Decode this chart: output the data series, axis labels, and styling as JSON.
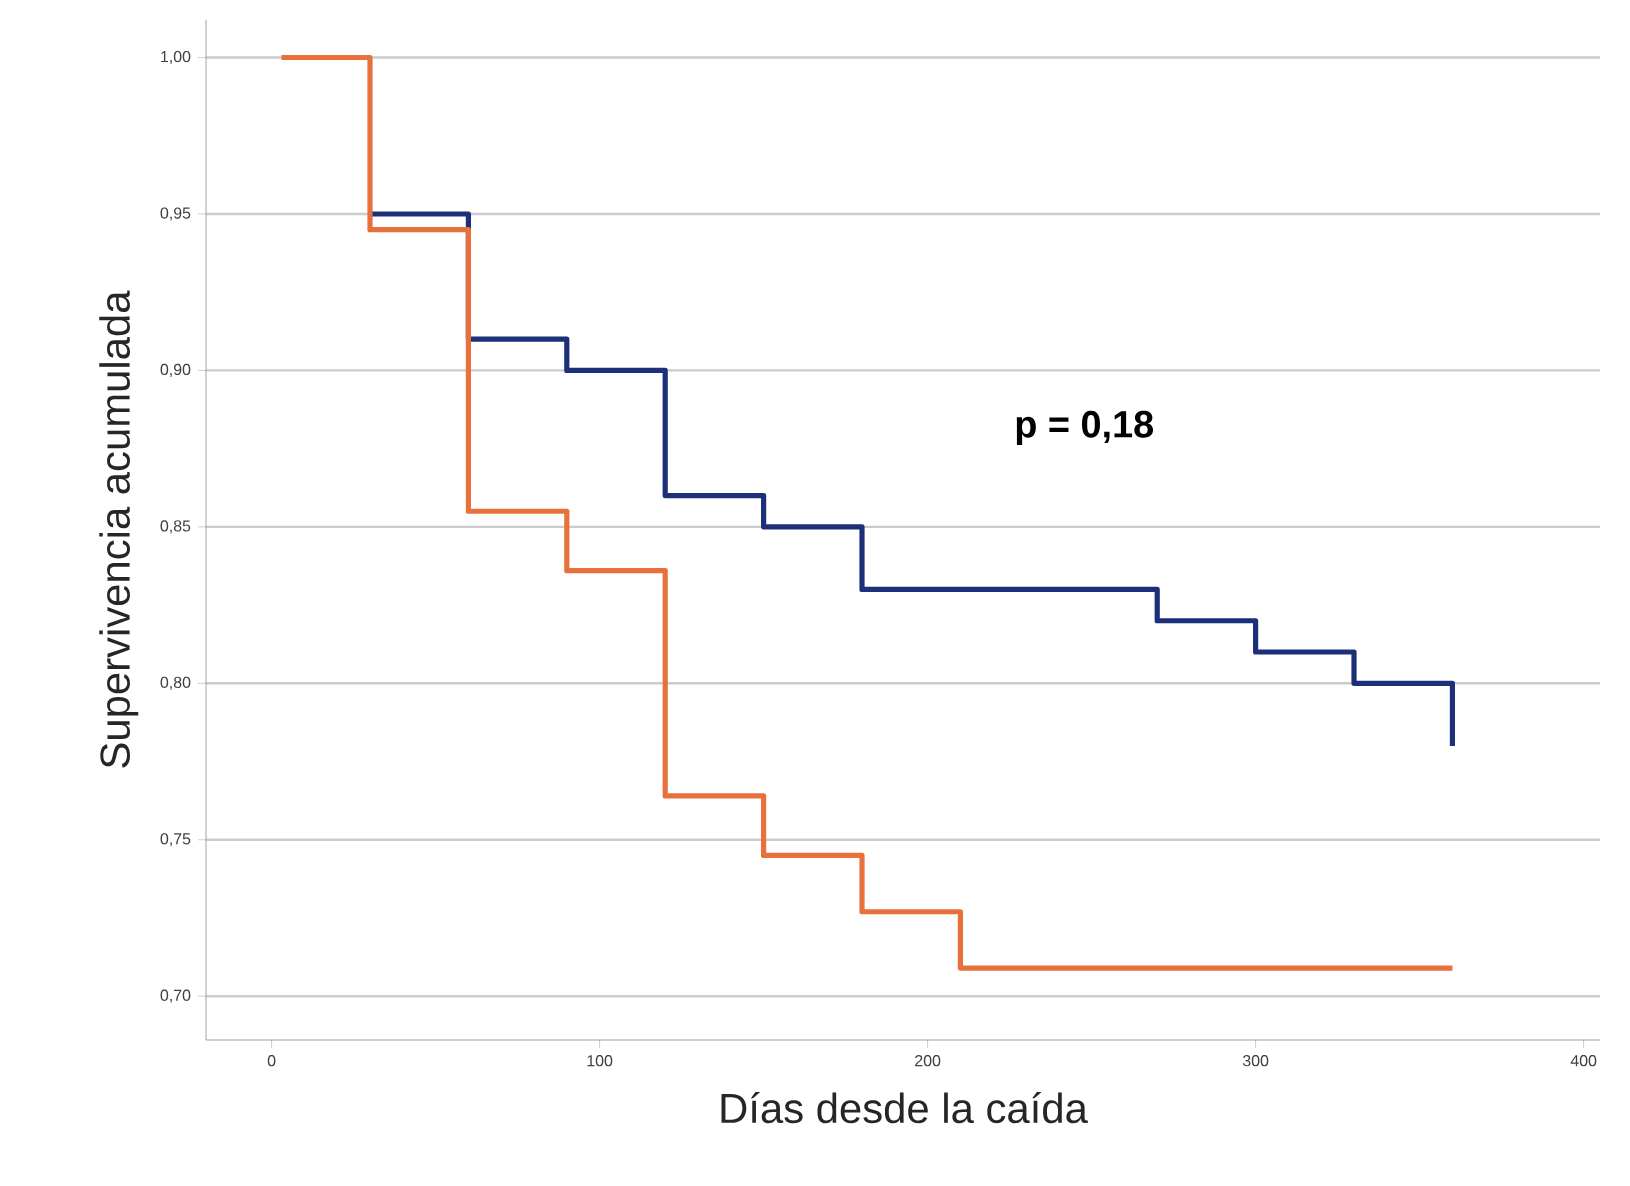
{
  "chart_data": {
    "type": "step",
    "xlabel": "Días desde la caída",
    "ylabel": "Supervivencia acumulada",
    "annotations": [
      "p = 0,18"
    ],
    "xlim": [
      -20,
      405
    ],
    "ylim": [
      0.686,
      1.012
    ],
    "xticks": [
      0,
      100,
      200,
      300,
      400
    ],
    "yticks": [
      {
        "value": 0.7,
        "label": "0,70"
      },
      {
        "value": 0.75,
        "label": "0,75"
      },
      {
        "value": 0.8,
        "label": "0,80"
      },
      {
        "value": 0.85,
        "label": "0,85"
      },
      {
        "value": 0.9,
        "label": "0,90"
      },
      {
        "value": 0.95,
        "label": "0,95"
      },
      {
        "value": 1.0,
        "label": "1,00"
      }
    ],
    "grid": "y",
    "legend": false,
    "marker": "none",
    "line_style": "solid",
    "series": [
      {
        "color": "#1c2f78",
        "x": [
          30,
          60,
          90,
          120,
          150,
          180,
          270,
          300,
          330,
          360
        ],
        "values": [
          0.95,
          0.91,
          0.9,
          0.86,
          0.85,
          0.83,
          0.82,
          0.81,
          0.8,
          0.78
        ]
      },
      {
        "color": "#e8703a",
        "x": [
          3,
          30,
          60,
          90,
          120,
          150,
          180,
          210,
          360
        ],
        "values": [
          1.0,
          0.945,
          0.855,
          0.836,
          0.764,
          0.745,
          0.727,
          0.709,
          0.709
        ]
      }
    ]
  }
}
